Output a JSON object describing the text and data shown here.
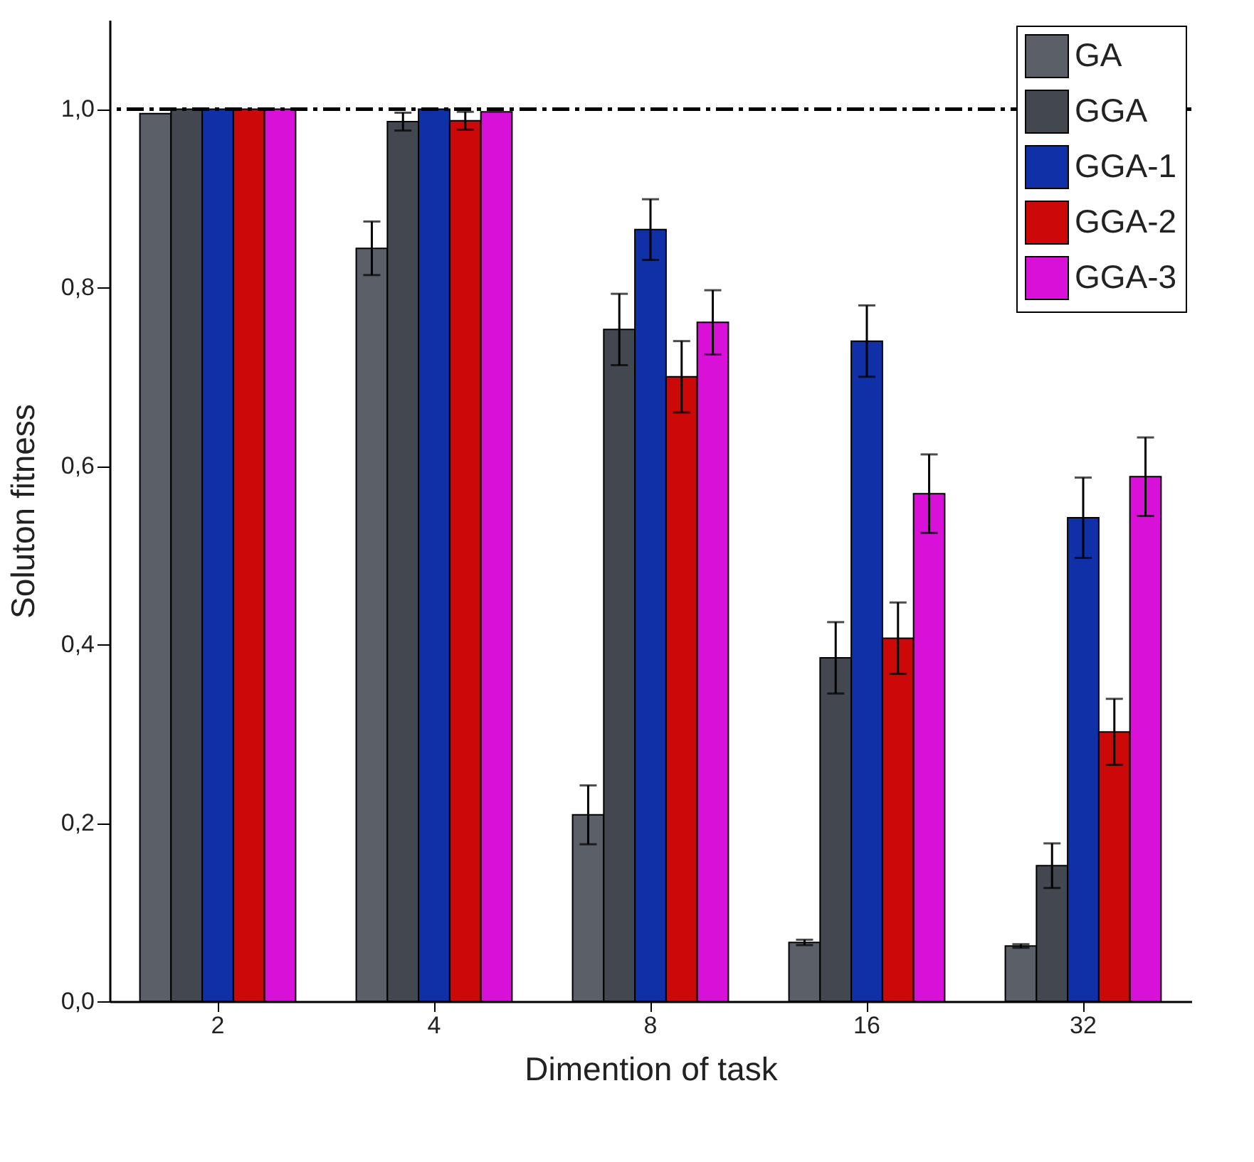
{
  "chart_data": {
    "type": "bar",
    "xlabel": "Dimention of task",
    "ylabel": "Soluton fitness",
    "categories": [
      "2",
      "4",
      "8",
      "16",
      "32"
    ],
    "series": [
      {
        "name": "GA",
        "color": "#5b5f68",
        "values": [
          0.995,
          0.844,
          0.209,
          0.066,
          0.062
        ],
        "errors": [
          null,
          0.03,
          0.033,
          0.003,
          0.002
        ]
      },
      {
        "name": "GGA",
        "color": "#434750",
        "values": [
          1.0,
          0.986,
          0.753,
          0.385,
          0.152
        ],
        "errors": [
          null,
          0.01,
          0.04,
          0.04,
          0.025
        ]
      },
      {
        "name": "GGA-1",
        "color": "#1030a8",
        "values": [
          1.0,
          1.0,
          0.865,
          0.74,
          0.542
        ],
        "errors": [
          null,
          null,
          0.034,
          0.04,
          0.045
        ]
      },
      {
        "name": "GGA-2",
        "color": "#cc0808",
        "values": [
          1.0,
          0.987,
          0.7,
          0.407,
          0.302
        ],
        "errors": [
          null,
          0.01,
          0.04,
          0.04,
          0.037
        ]
      },
      {
        "name": "GGA-3",
        "color": "#d810d8",
        "values": [
          1.0,
          0.997,
          0.761,
          0.569,
          0.588
        ],
        "errors": [
          null,
          null,
          0.036,
          0.044,
          0.044
        ]
      }
    ],
    "ylim": [
      0,
      1.1
    ],
    "yticks": [
      {
        "value": 0,
        "label": "0,0"
      },
      {
        "value": 0.2,
        "label": "0,2"
      },
      {
        "value": 0.4,
        "label": "0,4"
      },
      {
        "value": 0.6,
        "label": "0,6"
      },
      {
        "value": 0.8,
        "label": "0,8"
      },
      {
        "value": 1.0,
        "label": "1,0"
      }
    ],
    "ref_lines": [
      {
        "axis": "y",
        "value": 1.0,
        "color": "#000000",
        "line_style": "dashed"
      }
    ],
    "legend": "top right",
    "grid": false
  }
}
